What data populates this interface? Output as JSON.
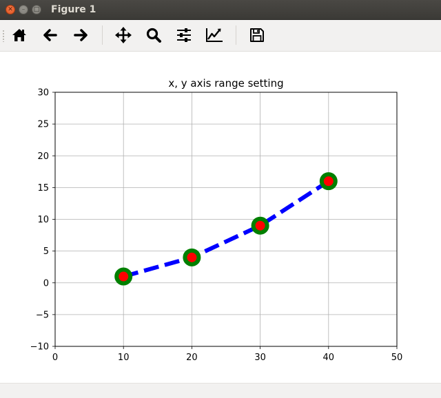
{
  "window": {
    "title": "Figure 1"
  },
  "toolbar": {
    "buttons": [
      {
        "name": "home-icon"
      },
      {
        "name": "back-arrow-icon"
      },
      {
        "name": "forward-arrow-icon"
      },
      {
        "name": "pan-icon"
      },
      {
        "name": "zoom-icon"
      },
      {
        "name": "subplots-config-icon"
      },
      {
        "name": "edit-axes-icon"
      },
      {
        "name": "save-icon"
      }
    ]
  },
  "colors": {
    "line": "#0000ff",
    "marker_edge": "#008000",
    "marker_face": "#ff0000"
  },
  "chart_data": {
    "type": "line",
    "title": "x, y axis range setting",
    "xlabel": "",
    "ylabel": "",
    "xlim": [
      0,
      50
    ],
    "ylim": [
      -10,
      30
    ],
    "xticks": [
      0,
      10,
      20,
      30,
      40,
      50
    ],
    "yticks": [
      -10,
      -5,
      0,
      5,
      10,
      15,
      20,
      25,
      30
    ],
    "grid": true,
    "series": [
      {
        "x": [
          10,
          20,
          30,
          40
        ],
        "y": [
          1,
          4,
          9,
          16
        ],
        "line_style": "dashed",
        "marker": "circle"
      }
    ]
  }
}
